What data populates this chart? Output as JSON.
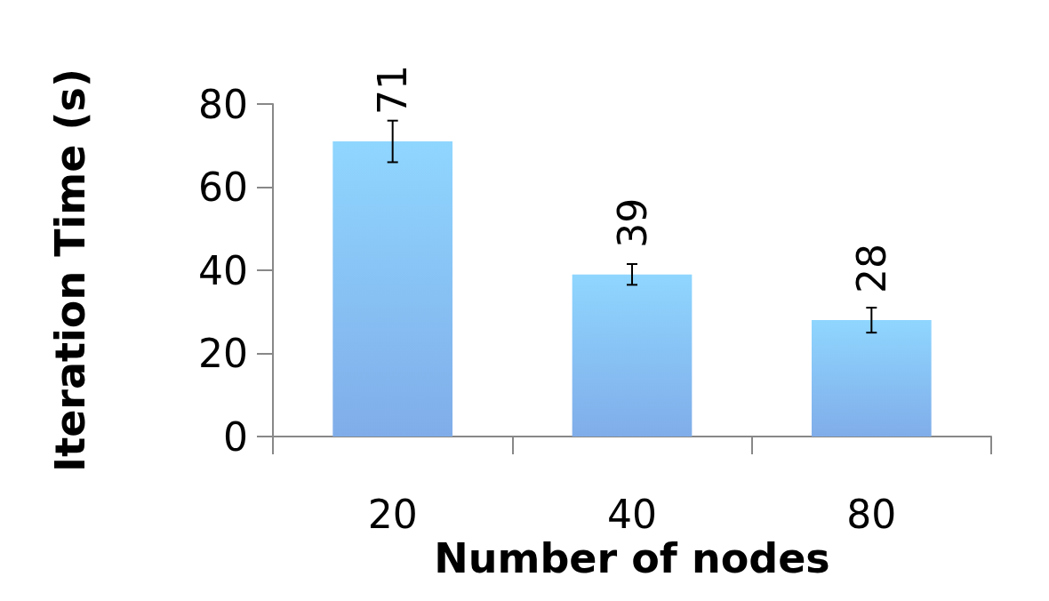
{
  "chart_data": {
    "type": "bar",
    "xlabel": "Number of nodes",
    "ylabel": "Iteration Time (s)",
    "categories": [
      "20",
      "40",
      "80"
    ],
    "values": [
      71,
      39,
      28
    ],
    "errors": [
      5,
      2.5,
      3
    ],
    "color": "#6a9fe6",
    "ylim": [
      0,
      80
    ],
    "yticks": [
      0,
      20,
      40,
      60,
      80
    ],
    "grid": false,
    "data_labels": true
  }
}
